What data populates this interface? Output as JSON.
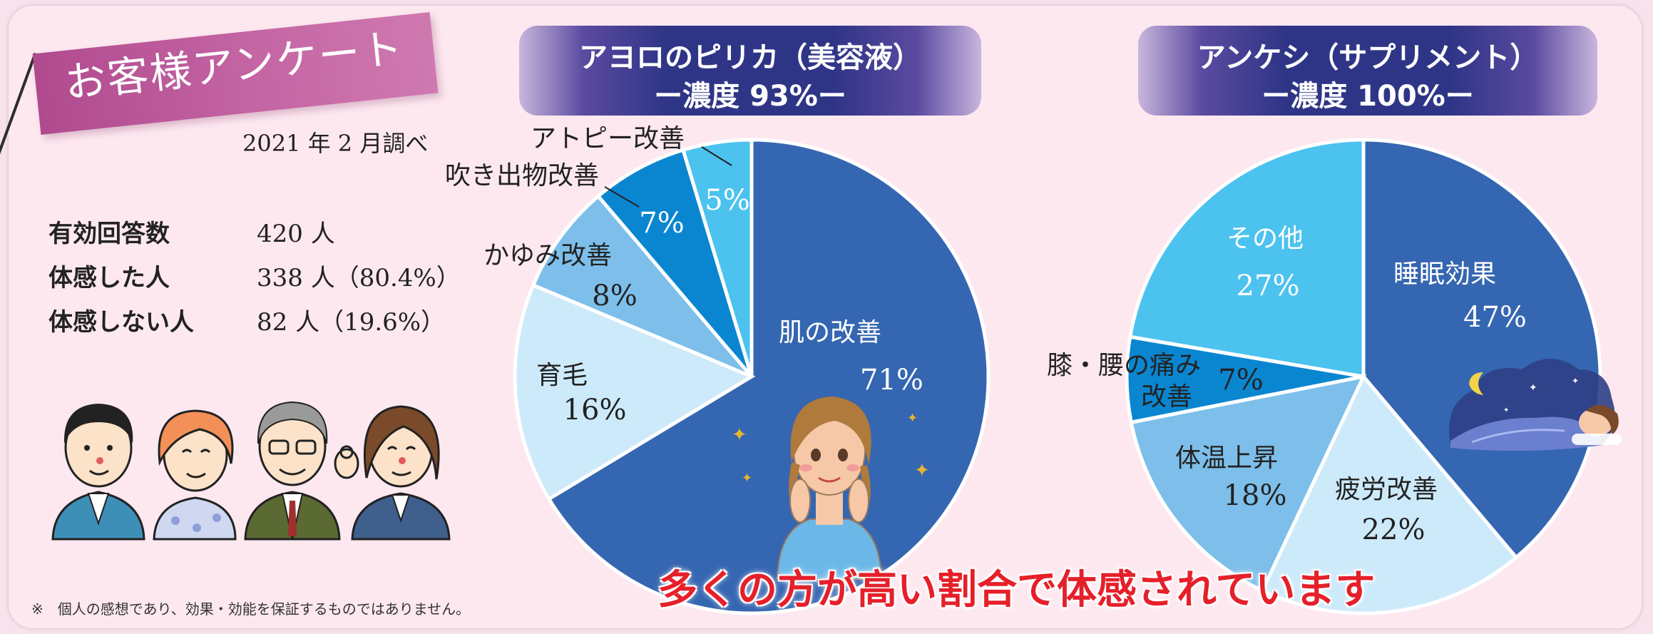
{
  "banner": {
    "title": "お客様アンケート"
  },
  "survey": {
    "date": "2021 年 2 月調べ"
  },
  "stats": [
    {
      "label": "有効回答数",
      "value": "420 人"
    },
    {
      "label": "体感した人",
      "value": "338 人（80.4%）"
    },
    {
      "label": "体感しない人",
      "value": " 82 人（19.6%）"
    }
  ],
  "disclaimer": "※　個人の感想であり、効果・効能を保証するものではありません。",
  "bottom_message": "多くの方が高い割合で体感されています",
  "colors": {
    "dark_blue": "#3566b1",
    "pale_blue": "#cdeafa",
    "light_blue": "#7dbfea",
    "mid_blue": "#0a86d1",
    "sky_blue": "#4cc2ef",
    "accent_red": "#e5202a",
    "banner_pink": "#c465a4",
    "header_navy": "#2f3586"
  },
  "illustrations": {
    "people": "people-group-icon",
    "woman": "happy-woman-icon",
    "sleeping": "sleeping-person-icon"
  },
  "chart_data": [
    {
      "type": "pie",
      "title": "アヨロのピリカ（美容液）",
      "subtitle": "ー濃度 93%ー",
      "slices": [
        {
          "label": "肌の改善",
          "value": 71,
          "value_label": "71%",
          "color": "#3566b1"
        },
        {
          "label": "育毛",
          "value": 16,
          "value_label": "16%",
          "color": "#cdeafa"
        },
        {
          "label": "かゆみ改善",
          "value": 8,
          "value_label": "8%",
          "color": "#7dbfea"
        },
        {
          "label": "吹き出物改善",
          "value": 7,
          "value_label": "7%",
          "color": "#0a86d1"
        },
        {
          "label": "アトピー改善",
          "value": 5,
          "value_label": "5%",
          "color": "#4cc2ef"
        }
      ]
    },
    {
      "type": "pie",
      "title": "アンケシ（サプリメント）",
      "subtitle": "ー濃度 100%ー",
      "slices": [
        {
          "label": "睡眠効果",
          "value": 47,
          "value_label": "47%",
          "color": "#3566b1"
        },
        {
          "label": "疲労改善",
          "value": 22,
          "value_label": "22%",
          "color": "#cdeafa"
        },
        {
          "label": "体温上昇",
          "value": 18,
          "value_label": "18%",
          "color": "#7dbfea"
        },
        {
          "label": "膝・腰の痛み改善",
          "label_lines": [
            "膝・腰の痛み",
            "改善"
          ],
          "value": 7,
          "value_label": "7%",
          "color": "#0a86d1"
        },
        {
          "label": "その他",
          "value": 27,
          "value_label": "27%",
          "color": "#4cc2ef"
        }
      ]
    }
  ]
}
